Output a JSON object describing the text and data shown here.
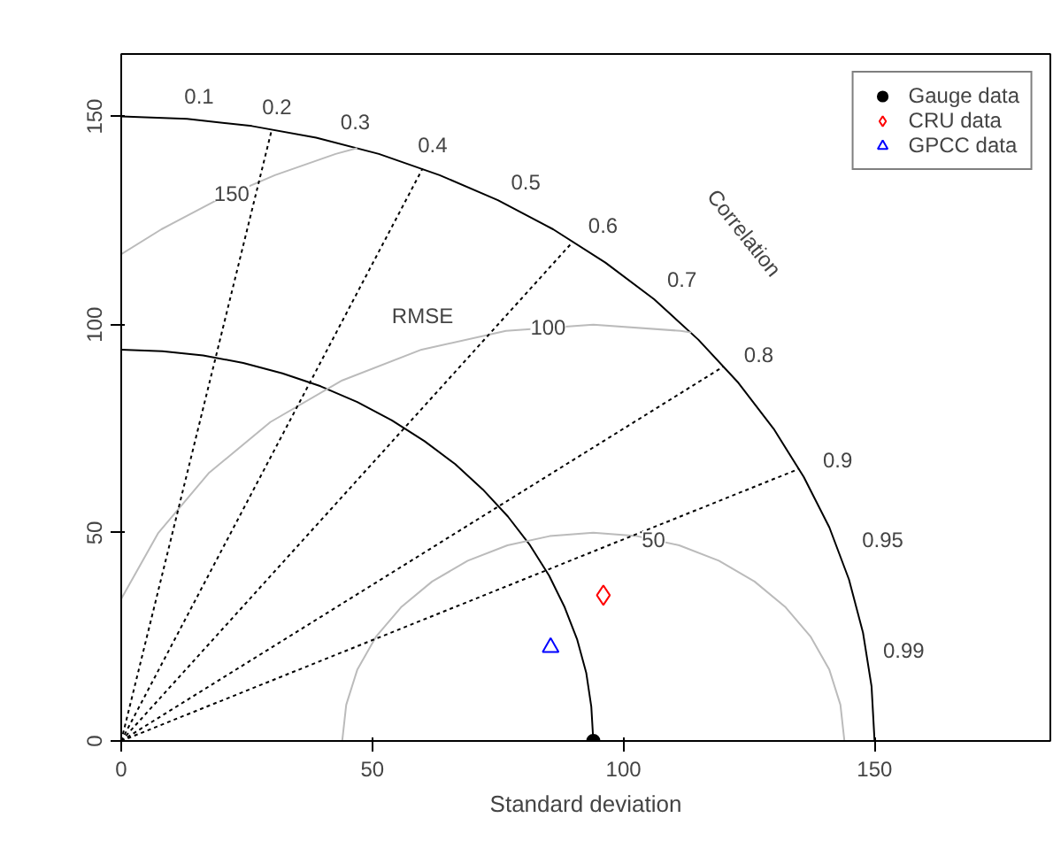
{
  "chart_data": {
    "type": "scatter",
    "xlabel": "Standard deviation",
    "xlim": [
      0,
      185
    ],
    "ylim": [
      0,
      165
    ],
    "xticks": [
      0,
      50,
      100,
      150
    ],
    "yticks": [
      0,
      50,
      100,
      150
    ],
    "legend": "top right",
    "series": [
      {
        "name": "Gauge data",
        "color": "#000000",
        "marker": "circle",
        "x": [
          94
        ],
        "values": [
          0
        ]
      },
      {
        "name": "CRU data",
        "color": "#ff0000",
        "marker": "diamond",
        "x": [
          96
        ],
        "values": [
          35
        ]
      },
      {
        "name": "GPCC data",
        "color": "#0000ff",
        "marker": "triangle",
        "x": [
          85.5
        ],
        "values": [
          22.5
        ]
      },
      {
        "type": "line",
        "color": "#000000",
        "line_style": "solid",
        "x": [
          150,
          149.4,
          147.7,
          144.9,
          141.0,
          135.9,
          129.9,
          122.9,
          114.9,
          106.1,
          96.4,
          86.0,
          75,
          63.4,
          51.3,
          38.8,
          26.0,
          13.1,
          0
        ],
        "values": [
          0,
          13.1,
          26.0,
          38.8,
          51.3,
          63.4,
          75,
          86.0,
          96.4,
          106.1,
          114.9,
          122.9,
          129.9,
          135.9,
          141.0,
          144.9,
          147.7,
          149.4,
          150
        ]
      },
      {
        "type": "line",
        "color": "#000000",
        "line_style": "solid",
        "x": [
          94,
          93.6,
          92.6,
          90.8,
          88.3,
          85.2,
          81.4,
          77.0,
          72.0,
          66.5,
          60.4,
          53.9,
          47,
          39.7,
          32.1,
          24.3,
          16.3,
          8.2,
          0
        ],
        "values": [
          0,
          8.2,
          16.3,
          24.3,
          32.1,
          39.7,
          47,
          53.9,
          60.4,
          66.5,
          72.0,
          77.0,
          81.4,
          85.2,
          88.3,
          90.8,
          92.6,
          93.6,
          94
        ]
      },
      {
        "type": "line",
        "color": "#bbbbbb",
        "line_style": "solid",
        "x": [
          144,
          143.2,
          141.0,
          137.3,
          132.3,
          126.1,
          119,
          111.1,
          102.7,
          94,
          85.3,
          76.9,
          69,
          61.9,
          55.7,
          50.7,
          47.0,
          44.8,
          44
        ],
        "values": [
          0,
          8.7,
          17.1,
          25,
          32.1,
          38.3,
          43.3,
          47.0,
          49.2,
          50,
          49.2,
          47.0,
          43.3,
          38.3,
          32.1,
          25,
          17.1,
          8.7,
          0
        ]
      },
      {
        "type": "line",
        "color": "#bbbbbb",
        "line_style": "solid",
        "x": [
          113.5,
          111.4,
          94,
          76.6,
          59.8,
          44,
          29.7,
          17.4,
          7.4,
          0
        ],
        "values": [
          98.1,
          98.5,
          100,
          98.5,
          94.0,
          86.6,
          76.6,
          64.3,
          50,
          34.1
        ]
      },
      {
        "type": "line",
        "color": "#bbbbbb",
        "line_style": "solid",
        "x": [
          47,
          42.7,
          30.6,
          19,
          8.0,
          0
        ],
        "values": [
          142.4,
          141.0,
          135.9,
          129.9,
          122.9,
          116.9
        ]
      },
      {
        "type": "line",
        "color": "#000000",
        "line_style": "dotted",
        "x": [
          0,
          30
        ],
        "values": [
          0,
          146.97
        ]
      },
      {
        "type": "line",
        "color": "#000000",
        "line_style": "dotted",
        "x": [
          0,
          60
        ],
        "values": [
          0,
          137.48
        ]
      },
      {
        "type": "line",
        "color": "#000000",
        "line_style": "dotted",
        "x": [
          0,
          90
        ],
        "values": [
          0,
          120
        ]
      },
      {
        "type": "line",
        "color": "#000000",
        "line_style": "dotted",
        "x": [
          0,
          120
        ],
        "values": [
          0,
          90
        ]
      },
      {
        "type": "line",
        "color": "#000000",
        "line_style": "dotted",
        "x": [
          0,
          135
        ],
        "values": [
          0,
          65.38
        ]
      }
    ],
    "annotations": [
      "0.1",
      "0.2",
      "0.3",
      "0.4",
      "0.5",
      "0.6",
      "0.7",
      "0.8",
      "0.9",
      "0.95",
      "0.99",
      "150",
      "100",
      "50",
      "RMSE",
      "Correlation"
    ]
  }
}
